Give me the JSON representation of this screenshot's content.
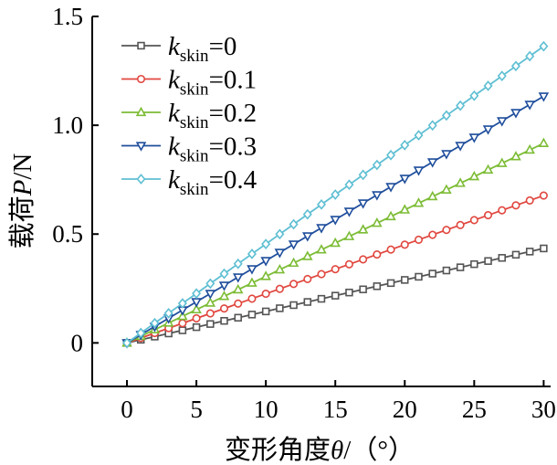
{
  "chart_data": {
    "type": "line",
    "xlabel": {
      "main": "变形角度",
      "symbol": "θ",
      "unit": "/（°）"
    },
    "ylabel": {
      "main": "载荷",
      "symbol": "P",
      "unit": "/N"
    },
    "xlim": [
      -2.5,
      30.5
    ],
    "ylim": [
      -0.2,
      1.5
    ],
    "xticks": [
      0,
      5,
      10,
      15,
      20,
      25,
      30
    ],
    "xtick_labels": [
      "0",
      "5",
      "10",
      "15",
      "20",
      "25",
      "30"
    ],
    "yticks": [
      0,
      0.5,
      1.0,
      1.5
    ],
    "ytick_labels": [
      "0",
      "0.5",
      "1.0",
      "1.5"
    ],
    "x": [
      0,
      1,
      2,
      3,
      4,
      5,
      6,
      7,
      8,
      9,
      10,
      11,
      12,
      13,
      14,
      15,
      16,
      17,
      18,
      19,
      20,
      21,
      22,
      23,
      24,
      25,
      26,
      27,
      28,
      29,
      30
    ],
    "legend_position": "top-left",
    "series": [
      {
        "name_k": "k",
        "name_sub": "skin",
        "name_val": "=0",
        "color": "#555555",
        "marker": "square",
        "slope": 0.01447
      },
      {
        "name_k": "k",
        "name_sub": "skin",
        "name_val": "=0.1",
        "color": "#e0473f",
        "marker": "circle",
        "slope": 0.02257
      },
      {
        "name_k": "k",
        "name_sub": "skin",
        "name_val": "=0.2",
        "color": "#7cbc35",
        "marker": "triangle-up",
        "slope": 0.03057
      },
      {
        "name_k": "k",
        "name_sub": "skin",
        "name_val": "=0.3",
        "color": "#1f4e9c",
        "marker": "triangle-down",
        "slope": 0.03777
      },
      {
        "name_k": "k",
        "name_sub": "skin",
        "name_val": "=0.4",
        "color": "#5fbfd3",
        "marker": "diamond",
        "slope": 0.04543
      }
    ]
  }
}
